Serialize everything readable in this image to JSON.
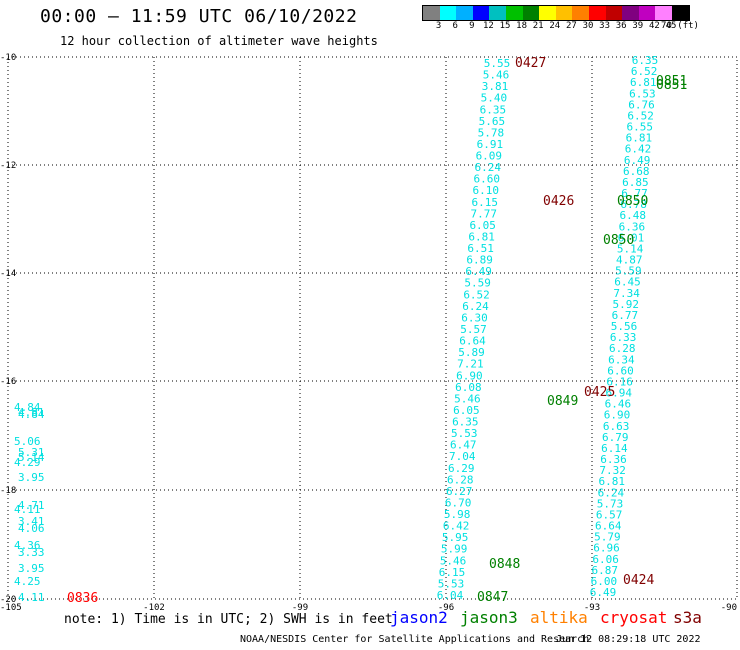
{
  "header": {
    "title": "00:00 – 11:59 UTC 06/10/2022",
    "subtitle": "12 hour collection of altimeter wave heights"
  },
  "colorbar": {
    "colors": [
      "#808080",
      "#00ffff",
      "#00b0ff",
      "#0000ff",
      "#00c0c0",
      "#00c000",
      "#008000",
      "#ffff00",
      "#ffc000",
      "#ff8000",
      "#ff0000",
      "#c00000",
      "#800080",
      "#c000c0",
      "#ff80ff",
      "#000000"
    ],
    "labels": [
      "3",
      "6",
      "9",
      "12",
      "15",
      "18",
      "21",
      "24",
      "27",
      "30",
      "33",
      "36",
      "39",
      "42",
      "45",
      "70 (ft)"
    ]
  },
  "axes": {
    "x_ticks": [
      "-105",
      "-102",
      "-99",
      "-96",
      "-93",
      "-90"
    ],
    "y_ticks": [
      "-10",
      "-12",
      "-14",
      "-16",
      "-18",
      "-20"
    ]
  },
  "colors": {
    "swh": "#00e0e0",
    "time_jason3": "#008000",
    "time_cryosat": "#800000",
    "time_s3a": "#ff0000"
  },
  "track_labels": [
    {
      "text": "0427",
      "color": "#800000"
    },
    {
      "text": "0851",
      "color": "#008000"
    },
    {
      "text": "0426",
      "color": "#800000"
    },
    {
      "text": "0850",
      "color": "#008000"
    },
    {
      "text": "0850",
      "color": "#008000"
    },
    {
      "text": "0425",
      "color": "#800000"
    },
    {
      "text": "0849",
      "color": "#008000"
    },
    {
      "text": "0848",
      "color": "#008000"
    },
    {
      "text": "0847",
      "color": "#008000"
    },
    {
      "text": "0424",
      "color": "#800000"
    },
    {
      "text": "0836",
      "color": "#ff0000"
    }
  ],
  "swh_track_a": [
    "5.55",
    "5.46",
    "3.81",
    "5.40",
    "6.35",
    "5.65",
    "5.78",
    "6.91",
    "6.09",
    "6.24",
    "6.60",
    "6.10",
    "6.15",
    "7.77",
    "6.05",
    "6.81",
    "6.51",
    "6.89",
    "6.49",
    "5.59",
    "6.52",
    "6.24",
    "6.30",
    "5.57",
    "6.64",
    "5.89",
    "7.21",
    "6.90",
    "6.08",
    "5.46",
    "6.05",
    "6.35",
    "5.53",
    "6.47",
    "7.04",
    "6.29",
    "6.28",
    "6.27",
    "6.70",
    "5.98",
    "6.42",
    "5.95",
    "5.99",
    "5.46",
    "6.15",
    "5.53",
    "6.04"
  ],
  "swh_track_b": [
    "6.35",
    "6.52",
    "6.81",
    "6.53",
    "6.76",
    "6.52",
    "6.55",
    "6.81",
    "6.42",
    "6.49",
    "6.68",
    "6.85",
    "6.77",
    "6.78",
    "6.48",
    "6.36",
    "6.01",
    "5.14",
    "4.87",
    "5.59",
    "6.45",
    "7.34",
    "5.92",
    "6.77",
    "5.56",
    "6.33",
    "6.28",
    "6.34",
    "6.60",
    "6.16",
    "6.94",
    "6.46",
    "6.90",
    "6.63",
    "6.79",
    "6.14",
    "6.36",
    "7.32",
    "6.81",
    "6.24",
    "5.73",
    "6.57",
    "6.64",
    "5.79",
    "6.96",
    "6.06",
    "6.87",
    "6.00",
    "6.49"
  ],
  "swh_west": [
    "4.84",
    "4.81",
    "4.84",
    "5.06",
    "5.31",
    "5.14",
    "4.29",
    "3.95",
    "4.71",
    "4.11",
    "3.41",
    "4.06",
    "4.36",
    "3.33",
    "3.95",
    "4.25",
    "4.11"
  ],
  "footer": {
    "note": "note: 1) Time is in UTC; 2) SWH is in feet",
    "legend": [
      {
        "label": "jason2",
        "color": "#0000ff"
      },
      {
        "label": "jason3",
        "color": "#008000"
      },
      {
        "label": "altika",
        "color": "#ff8000"
      },
      {
        "label": "cryosat",
        "color": "#ff0000"
      },
      {
        "label": "s3a",
        "color": "#800000"
      }
    ],
    "credit": "NOAA/NESDIS Center for Satellite Applications and Research",
    "stamp": "Jun 12 08:29:18 UTC 2022"
  }
}
